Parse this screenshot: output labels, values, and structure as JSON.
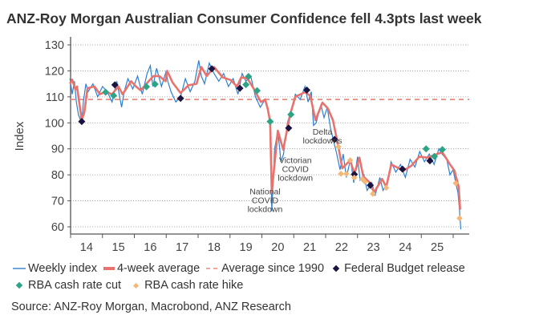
{
  "title": "ANZ-Roy Morgan Australian Consumer Confidence fell 4.3pts last week",
  "source": "Source: ANZ-Roy Morgan, Macrobond, ANZ Research",
  "legend": {
    "weekly": "Weekly index",
    "avg4": "4-week average",
    "avg1990": "Average since 1990",
    "budget": "Federal Budget release",
    "cut": "RBA cash rate cut",
    "hike": "RBA cash rate hike"
  },
  "colors": {
    "weekly": "#2e7fd0",
    "avg4": "#e9726c",
    "avg1990": "#e98a7e",
    "budget": "#1b1440",
    "cut": "#2ea486",
    "hike": "#f3b878",
    "grid": "#bbbbbb",
    "axis": "#555555"
  },
  "chart_data": {
    "type": "line",
    "title": "ANZ-Roy Morgan Australian Consumer Confidence fell 4.3pts last week",
    "ylabel": "Index",
    "xlabel": "",
    "ylim": [
      58,
      130
    ],
    "yticks": [
      60,
      70,
      80,
      90,
      100,
      110,
      120,
      130
    ],
    "xlim": [
      2013.7,
      2026.5
    ],
    "xticks": [
      "14",
      "15",
      "16",
      "17",
      "18",
      "19",
      "20",
      "21",
      "22",
      "23",
      "24",
      "25"
    ],
    "grid": "horizontal dotted",
    "legend_position": "bottom",
    "average_since_1990": 109,
    "annotations": [
      {
        "text": "National\nCOVID\nlockdown",
        "x": 2020.1,
        "y": 70
      },
      {
        "text": "Victorian\nCOVID\nlockdown",
        "x": 2021.05,
        "y": 82
      },
      {
        "text": "Delta\nlockdowns",
        "x": 2021.9,
        "y": 93
      }
    ],
    "series": [
      {
        "name": "4-week average",
        "x": [
          2013.98,
          2014.05,
          2014.15,
          2014.2,
          2014.35,
          2014.43,
          2014.53,
          2014.75,
          2014.92,
          2015.1,
          2015.3,
          2015.5,
          2015.63,
          2015.9,
          2016.05,
          2016.2,
          2016.45,
          2016.6,
          2016.78,
          2016.98,
          2017.03,
          2017.2,
          2017.45,
          2017.7,
          2017.95,
          2018.1,
          2018.27,
          2018.5,
          2018.77,
          2019.02,
          2019.22,
          2019.35,
          2019.55,
          2019.75,
          2019.97,
          2020.1,
          2020.18,
          2020.26,
          2020.31,
          2020.5,
          2020.67,
          2020.88,
          2021.05,
          2021.35,
          2021.52,
          2021.68,
          2021.9,
          2022.07,
          2022.23,
          2022.4,
          2022.52,
          2022.77,
          2022.9,
          2023.06,
          2023.18,
          2023.35,
          2023.52,
          2023.77,
          2023.9,
          2024.06,
          2024.44,
          2024.69,
          2024.94,
          2025.2,
          2025.4,
          2025.66,
          2025.87,
          2026.04,
          2026.17,
          2026.22
        ],
        "y": [
          115,
          116.6,
          112.8,
          114,
          101,
          104,
          113.3,
          114,
          111,
          112,
          111,
          114,
          111,
          116,
          114,
          112.5,
          116,
          118,
          118,
          116,
          120,
          115.5,
          111.5,
          114.5,
          115,
          121.5,
          118,
          121.5,
          117.5,
          116.5,
          114,
          117.5,
          117,
          113,
          108,
          109,
          105.5,
          100.5,
          73.3,
          97,
          89.7,
          103,
          110,
          111.8,
          110.4,
          101,
          107.8,
          105.5,
          101,
          90.8,
          82.5,
          85.6,
          80.4,
          86.6,
          79.4,
          77.4,
          73.3,
          78.4,
          75.4,
          84,
          81.6,
          83.5,
          87,
          86.6,
          87.6,
          88.7,
          84.6,
          81.6,
          75.4,
          66.6
        ]
      },
      {
        "name": "Weekly index",
        "x": [
          2013.98,
          2014.05,
          2014.12,
          2014.18,
          2014.25,
          2014.35,
          2014.4,
          2014.48,
          2014.55,
          2014.7,
          2014.85,
          2015.0,
          2015.15,
          2015.3,
          2015.45,
          2015.6,
          2015.68,
          2015.8,
          2015.95,
          2016.1,
          2016.25,
          2016.4,
          2016.5,
          2016.58,
          2016.7,
          2016.85,
          2017.0,
          2017.05,
          2017.15,
          2017.3,
          2017.45,
          2017.6,
          2017.75,
          2017.9,
          2018.02,
          2018.1,
          2018.2,
          2018.35,
          2018.5,
          2018.65,
          2018.8,
          2018.95,
          2019.1,
          2019.25,
          2019.38,
          2019.5,
          2019.65,
          2019.8,
          2019.95,
          2020.1,
          2020.2,
          2020.26,
          2020.29,
          2020.31,
          2020.4,
          2020.5,
          2020.6,
          2020.68,
          2020.8,
          2020.9,
          2021.05,
          2021.2,
          2021.35,
          2021.45,
          2021.55,
          2021.62,
          2021.7,
          2021.85,
          2021.95,
          2022.05,
          2022.15,
          2022.25,
          2022.35,
          2022.45,
          2022.55,
          2022.65,
          2022.78,
          2022.88,
          2023.0,
          2023.08,
          2023.2,
          2023.3,
          2023.45,
          2023.55,
          2023.7,
          2023.8,
          2023.95,
          2024.05,
          2024.2,
          2024.35,
          2024.5,
          2024.65,
          2024.8,
          2024.95,
          2025.1,
          2025.25,
          2025.4,
          2025.55,
          2025.65,
          2025.8,
          2025.9,
          2026.0,
          2026.08,
          2026.15,
          2026.2,
          2026.24
        ],
        "y": [
          117,
          111,
          116,
          108,
          103,
          100,
          108,
          115,
          112,
          115,
          110,
          114,
          112,
          108,
          116,
          106,
          112,
          117,
          113,
          118,
          111,
          119,
          122,
          114,
          121,
          114,
          120,
          116,
          112,
          108,
          110,
          117,
          112,
          116,
          124,
          118,
          115,
          123,
          119,
          116,
          119,
          114,
          117,
          111,
          119,
          116,
          118,
          110,
          106,
          109,
          104,
          99,
          80,
          66,
          90,
          97,
          85,
          88,
          100,
          104,
          111,
          109,
          114,
          108,
          112,
          99,
          100,
          107,
          102,
          106,
          98,
          93,
          88,
          82,
          88,
          79,
          86,
          77,
          87,
          78,
          80,
          74,
          77,
          72,
          79,
          74,
          77,
          85,
          81,
          84,
          79,
          86,
          83,
          89,
          85,
          88,
          84,
          90,
          88,
          86,
          80,
          82,
          77,
          73,
          66,
          59
        ]
      }
    ],
    "markers": {
      "Federal Budget release": {
        "x": [
          2014.35,
          2015.39,
          2017.45,
          2018.43,
          2019.31,
          2020.84,
          2021.41,
          2022.28,
          2022.9,
          2023.4,
          2024.41,
          2025.27
        ],
        "y": [
          100.5,
          114.6,
          109.4,
          120.8,
          113.3,
          98,
          112.6,
          93.6,
          80.2,
          76,
          82.2,
          85.4
        ]
      },
      "RBA cash rate cut": {
        "x": [
          2015.1,
          2015.35,
          2016.38,
          2016.65,
          2019.5,
          2019.58,
          2019.85,
          2020.26,
          2020.91,
          2025.15,
          2025.41,
          2025.66
        ],
        "y": [
          111.8,
          110.5,
          113.9,
          114.9,
          114.7,
          117.8,
          112.4,
          100.5,
          103.2,
          90,
          87.1,
          89.7
        ]
      },
      "RBA cash rate hike": {
        "x": [
          2022.4,
          2022.48,
          2022.65,
          2022.77,
          2022.9,
          2023.15,
          2023.23,
          2023.48,
          2023.9,
          2026.08,
          2026.2
        ],
        "y": [
          90.8,
          80.4,
          80.4,
          85.6,
          78.9,
          78.4,
          77.4,
          72.7,
          75,
          76.8,
          63.3
        ]
      }
    }
  }
}
